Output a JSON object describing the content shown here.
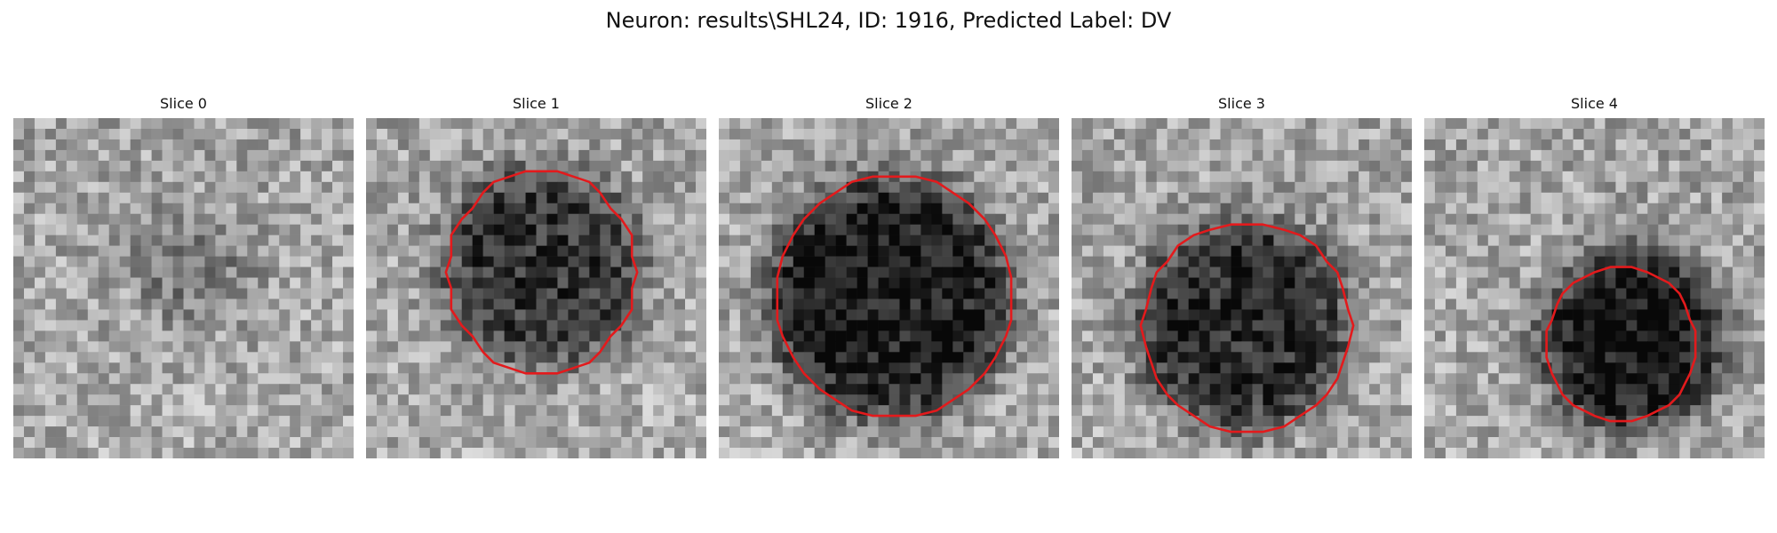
{
  "figure": {
    "title": "Neuron: results\\SHL24, ID: 1916, Predicted Label: DV"
  },
  "colors": {
    "contour": "#e31a1c",
    "colormap": "gray"
  },
  "panels": [
    {
      "title": "Slice 0",
      "has_contour": false
    },
    {
      "title": "Slice 1",
      "has_contour": true
    },
    {
      "title": "Slice 2",
      "has_contour": true
    },
    {
      "title": "Slice 3",
      "has_contour": true
    },
    {
      "title": "Slice 4",
      "has_contour": true
    }
  ]
}
